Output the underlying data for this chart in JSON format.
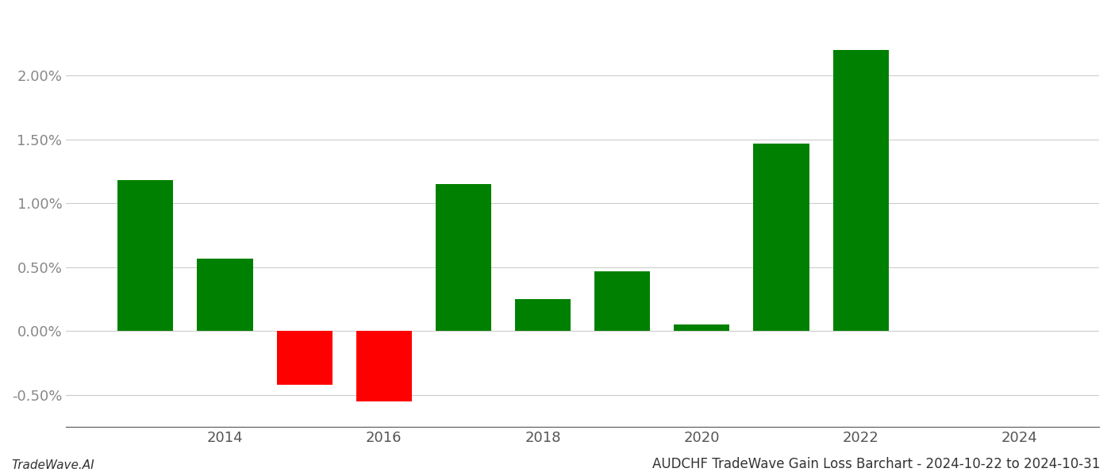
{
  "years": [
    2013,
    2014,
    2015,
    2016,
    2017,
    2018,
    2019,
    2020,
    2021,
    2022,
    2023
  ],
  "values": [
    1.18,
    0.57,
    -0.42,
    -0.55,
    1.15,
    0.25,
    0.47,
    0.05,
    1.47,
    2.2,
    0.0
  ],
  "bar_colors": [
    "#008000",
    "#008000",
    "#ff0000",
    "#ff0000",
    "#008000",
    "#008000",
    "#008000",
    "#008000",
    "#008000",
    "#008000",
    "#008000"
  ],
  "title": "AUDCHF TradeWave Gain Loss Barchart - 2024-10-22 to 2024-10-31",
  "ylabel": "",
  "xlabel": "",
  "ylim": [
    -0.75,
    2.5
  ],
  "yticks": [
    -0.5,
    0.0,
    0.5,
    1.0,
    1.5,
    2.0
  ],
  "xlim": [
    2012.0,
    2025.0
  ],
  "xticks": [
    2014,
    2016,
    2018,
    2020,
    2022,
    2024
  ],
  "footer_left": "TradeWave.AI",
  "background_color": "#ffffff",
  "grid_color": "#cccccc",
  "title_fontsize": 12,
  "tick_fontsize": 13,
  "footer_fontsize": 11
}
